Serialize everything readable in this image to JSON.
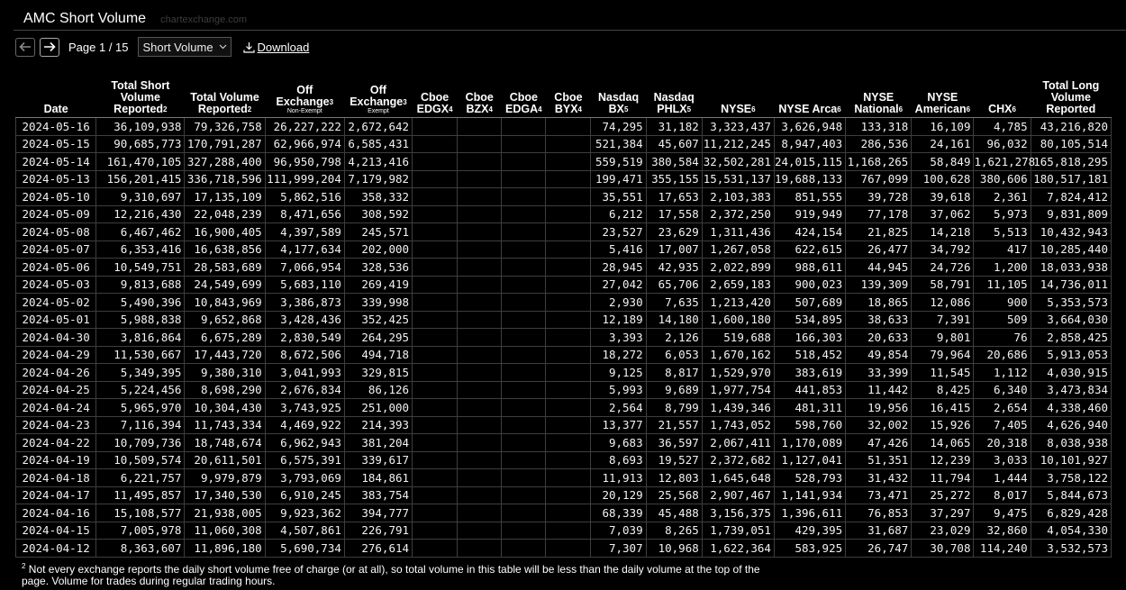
{
  "app": {
    "title": "AMC Short Volume",
    "watermark": "chartexchange.com"
  },
  "toolbar": {
    "page_label": "Page 1 / 15",
    "select_value": "Short Volume",
    "download_label": "Download"
  },
  "table": {
    "headers": [
      {
        "label": "Date",
        "sup": "",
        "sub": ""
      },
      {
        "label": "Total Short Volume Reported",
        "sup": "2",
        "sub": ""
      },
      {
        "label": "Total Volume Reported",
        "sup": "2",
        "sub": ""
      },
      {
        "label": "Off Exchange",
        "sup": "3",
        "sub": "Non-Exempt"
      },
      {
        "label": "Off Exchange",
        "sup": "3",
        "sub": "Exempt"
      },
      {
        "label": "Cboe EDGX",
        "sup": "4",
        "sub": ""
      },
      {
        "label": "Cboe BZX",
        "sup": "4",
        "sub": ""
      },
      {
        "label": "Cboe EDGA",
        "sup": "4",
        "sub": ""
      },
      {
        "label": "Cboe BYX",
        "sup": "4",
        "sub": ""
      },
      {
        "label": "Nasdaq BX",
        "sup": "5",
        "sub": ""
      },
      {
        "label": "Nasdaq PHLX",
        "sup": "5",
        "sub": ""
      },
      {
        "label": "NYSE",
        "sup": "6",
        "sub": ""
      },
      {
        "label": "NYSE Arca",
        "sup": "6",
        "sub": ""
      },
      {
        "label": "NYSE National",
        "sup": "6",
        "sub": ""
      },
      {
        "label": "NYSE American",
        "sup": "6",
        "sub": ""
      },
      {
        "label": "CHX",
        "sup": "6",
        "sub": ""
      },
      {
        "label": "Total Long Volume Reported",
        "sup": "",
        "sub": ""
      }
    ],
    "rows": [
      [
        "2024-05-16",
        "36,109,938",
        "79,326,758",
        "26,227,222",
        "2,672,642",
        "",
        "",
        "",
        "",
        "74,295",
        "31,182",
        "3,323,437",
        "3,626,948",
        "133,318",
        "16,109",
        "4,785",
        "43,216,820"
      ],
      [
        "2024-05-15",
        "90,685,773",
        "170,791,287",
        "62,966,974",
        "6,585,431",
        "",
        "",
        "",
        "",
        "521,384",
        "45,607",
        "11,212,245",
        "8,947,403",
        "286,536",
        "24,161",
        "96,032",
        "80,105,514"
      ],
      [
        "2024-05-14",
        "161,470,105",
        "327,288,400",
        "96,950,798",
        "4,213,416",
        "",
        "",
        "",
        "",
        "559,519",
        "380,584",
        "32,502,281",
        "24,015,115",
        "1,168,265",
        "58,849",
        "1,621,278",
        "165,818,295"
      ],
      [
        "2024-05-13",
        "156,201,415",
        "336,718,596",
        "111,999,204",
        "7,179,982",
        "",
        "",
        "",
        "",
        "199,471",
        "355,155",
        "15,531,137",
        "19,688,133",
        "767,099",
        "100,628",
        "380,606",
        "180,517,181"
      ],
      [
        "2024-05-10",
        "9,310,697",
        "17,135,109",
        "5,862,516",
        "358,332",
        "",
        "",
        "",
        "",
        "35,551",
        "17,653",
        "2,103,383",
        "851,555",
        "39,728",
        "39,618",
        "2,361",
        "7,824,412"
      ],
      [
        "2024-05-09",
        "12,216,430",
        "22,048,239",
        "8,471,656",
        "308,592",
        "",
        "",
        "",
        "",
        "6,212",
        "17,558",
        "2,372,250",
        "919,949",
        "77,178",
        "37,062",
        "5,973",
        "9,831,809"
      ],
      [
        "2024-05-08",
        "6,467,462",
        "16,900,405",
        "4,397,589",
        "245,571",
        "",
        "",
        "",
        "",
        "23,527",
        "23,629",
        "1,311,436",
        "424,154",
        "21,825",
        "14,218",
        "5,513",
        "10,432,943"
      ],
      [
        "2024-05-07",
        "6,353,416",
        "16,638,856",
        "4,177,634",
        "202,000",
        "",
        "",
        "",
        "",
        "5,416",
        "17,007",
        "1,267,058",
        "622,615",
        "26,477",
        "34,792",
        "417",
        "10,285,440"
      ],
      [
        "2024-05-06",
        "10,549,751",
        "28,583,689",
        "7,066,954",
        "328,536",
        "",
        "",
        "",
        "",
        "28,945",
        "42,935",
        "2,022,899",
        "988,611",
        "44,945",
        "24,726",
        "1,200",
        "18,033,938"
      ],
      [
        "2024-05-03",
        "9,813,688",
        "24,549,699",
        "5,683,110",
        "269,419",
        "",
        "",
        "",
        "",
        "27,042",
        "65,706",
        "2,659,183",
        "900,023",
        "139,309",
        "58,791",
        "11,105",
        "14,736,011"
      ],
      [
        "2024-05-02",
        "5,490,396",
        "10,843,969",
        "3,386,873",
        "339,998",
        "",
        "",
        "",
        "",
        "2,930",
        "7,635",
        "1,213,420",
        "507,689",
        "18,865",
        "12,086",
        "900",
        "5,353,573"
      ],
      [
        "2024-05-01",
        "5,988,838",
        "9,652,868",
        "3,428,436",
        "352,425",
        "",
        "",
        "",
        "",
        "12,189",
        "14,180",
        "1,600,180",
        "534,895",
        "38,633",
        "7,391",
        "509",
        "3,664,030"
      ],
      [
        "2024-04-30",
        "3,816,864",
        "6,675,289",
        "2,830,549",
        "264,295",
        "",
        "",
        "",
        "",
        "3,393",
        "2,126",
        "519,688",
        "166,303",
        "20,633",
        "9,801",
        "76",
        "2,858,425"
      ],
      [
        "2024-04-29",
        "11,530,667",
        "17,443,720",
        "8,672,506",
        "494,718",
        "",
        "",
        "",
        "",
        "18,272",
        "6,053",
        "1,670,162",
        "518,452",
        "49,854",
        "79,964",
        "20,686",
        "5,913,053"
      ],
      [
        "2024-04-26",
        "5,349,395",
        "9,380,310",
        "3,041,993",
        "329,815",
        "",
        "",
        "",
        "",
        "9,125",
        "8,817",
        "1,529,970",
        "383,619",
        "33,399",
        "11,545",
        "1,112",
        "4,030,915"
      ],
      [
        "2024-04-25",
        "5,224,456",
        "8,698,290",
        "2,676,834",
        "86,126",
        "",
        "",
        "",
        "",
        "5,993",
        "9,689",
        "1,977,754",
        "441,853",
        "11,442",
        "8,425",
        "6,340",
        "3,473,834"
      ],
      [
        "2024-04-24",
        "5,965,970",
        "10,304,430",
        "3,743,925",
        "251,000",
        "",
        "",
        "",
        "",
        "2,564",
        "8,799",
        "1,439,346",
        "481,311",
        "19,956",
        "16,415",
        "2,654",
        "4,338,460"
      ],
      [
        "2024-04-23",
        "7,116,394",
        "11,743,334",
        "4,469,922",
        "214,393",
        "",
        "",
        "",
        "",
        "13,377",
        "21,557",
        "1,743,052",
        "598,760",
        "32,002",
        "15,926",
        "7,405",
        "4,626,940"
      ],
      [
        "2024-04-22",
        "10,709,736",
        "18,748,674",
        "6,962,943",
        "381,204",
        "",
        "",
        "",
        "",
        "9,683",
        "36,597",
        "2,067,411",
        "1,170,089",
        "47,426",
        "14,065",
        "20,318",
        "8,038,938"
      ],
      [
        "2024-04-19",
        "10,509,574",
        "20,611,501",
        "6,575,391",
        "339,617",
        "",
        "",
        "",
        "",
        "8,693",
        "19,527",
        "2,372,682",
        "1,127,041",
        "51,351",
        "12,239",
        "3,033",
        "10,101,927"
      ],
      [
        "2024-04-18",
        "6,221,757",
        "9,979,879",
        "3,793,069",
        "184,861",
        "",
        "",
        "",
        "",
        "11,913",
        "12,803",
        "1,645,648",
        "528,793",
        "31,432",
        "11,794",
        "1,444",
        "3,758,122"
      ],
      [
        "2024-04-17",
        "11,495,857",
        "17,340,530",
        "6,910,245",
        "383,754",
        "",
        "",
        "",
        "",
        "20,129",
        "25,568",
        "2,907,467",
        "1,141,934",
        "73,471",
        "25,272",
        "8,017",
        "5,844,673"
      ],
      [
        "2024-04-16",
        "15,108,577",
        "21,938,005",
        "9,923,362",
        "394,777",
        "",
        "",
        "",
        "",
        "68,339",
        "45,488",
        "3,156,375",
        "1,396,611",
        "76,853",
        "37,297",
        "9,475",
        "6,829,428"
      ],
      [
        "2024-04-15",
        "7,005,978",
        "11,060,308",
        "4,507,861",
        "226,791",
        "",
        "",
        "",
        "",
        "7,039",
        "8,265",
        "1,739,051",
        "429,395",
        "31,687",
        "23,029",
        "32,860",
        "4,054,330"
      ],
      [
        "2024-04-12",
        "8,363,607",
        "11,896,180",
        "5,690,734",
        "276,614",
        "",
        "",
        "",
        "",
        "7,307",
        "10,968",
        "1,622,364",
        "583,925",
        "26,747",
        "30,708",
        "114,240",
        "3,532,573"
      ]
    ]
  },
  "footnote": {
    "sup": "2",
    "text": " Not every exchange reports the daily short volume free of charge (or at all), so total volume in this table will be less than the daily volume at the top of the page. Volume for trades during regular trading hours."
  }
}
